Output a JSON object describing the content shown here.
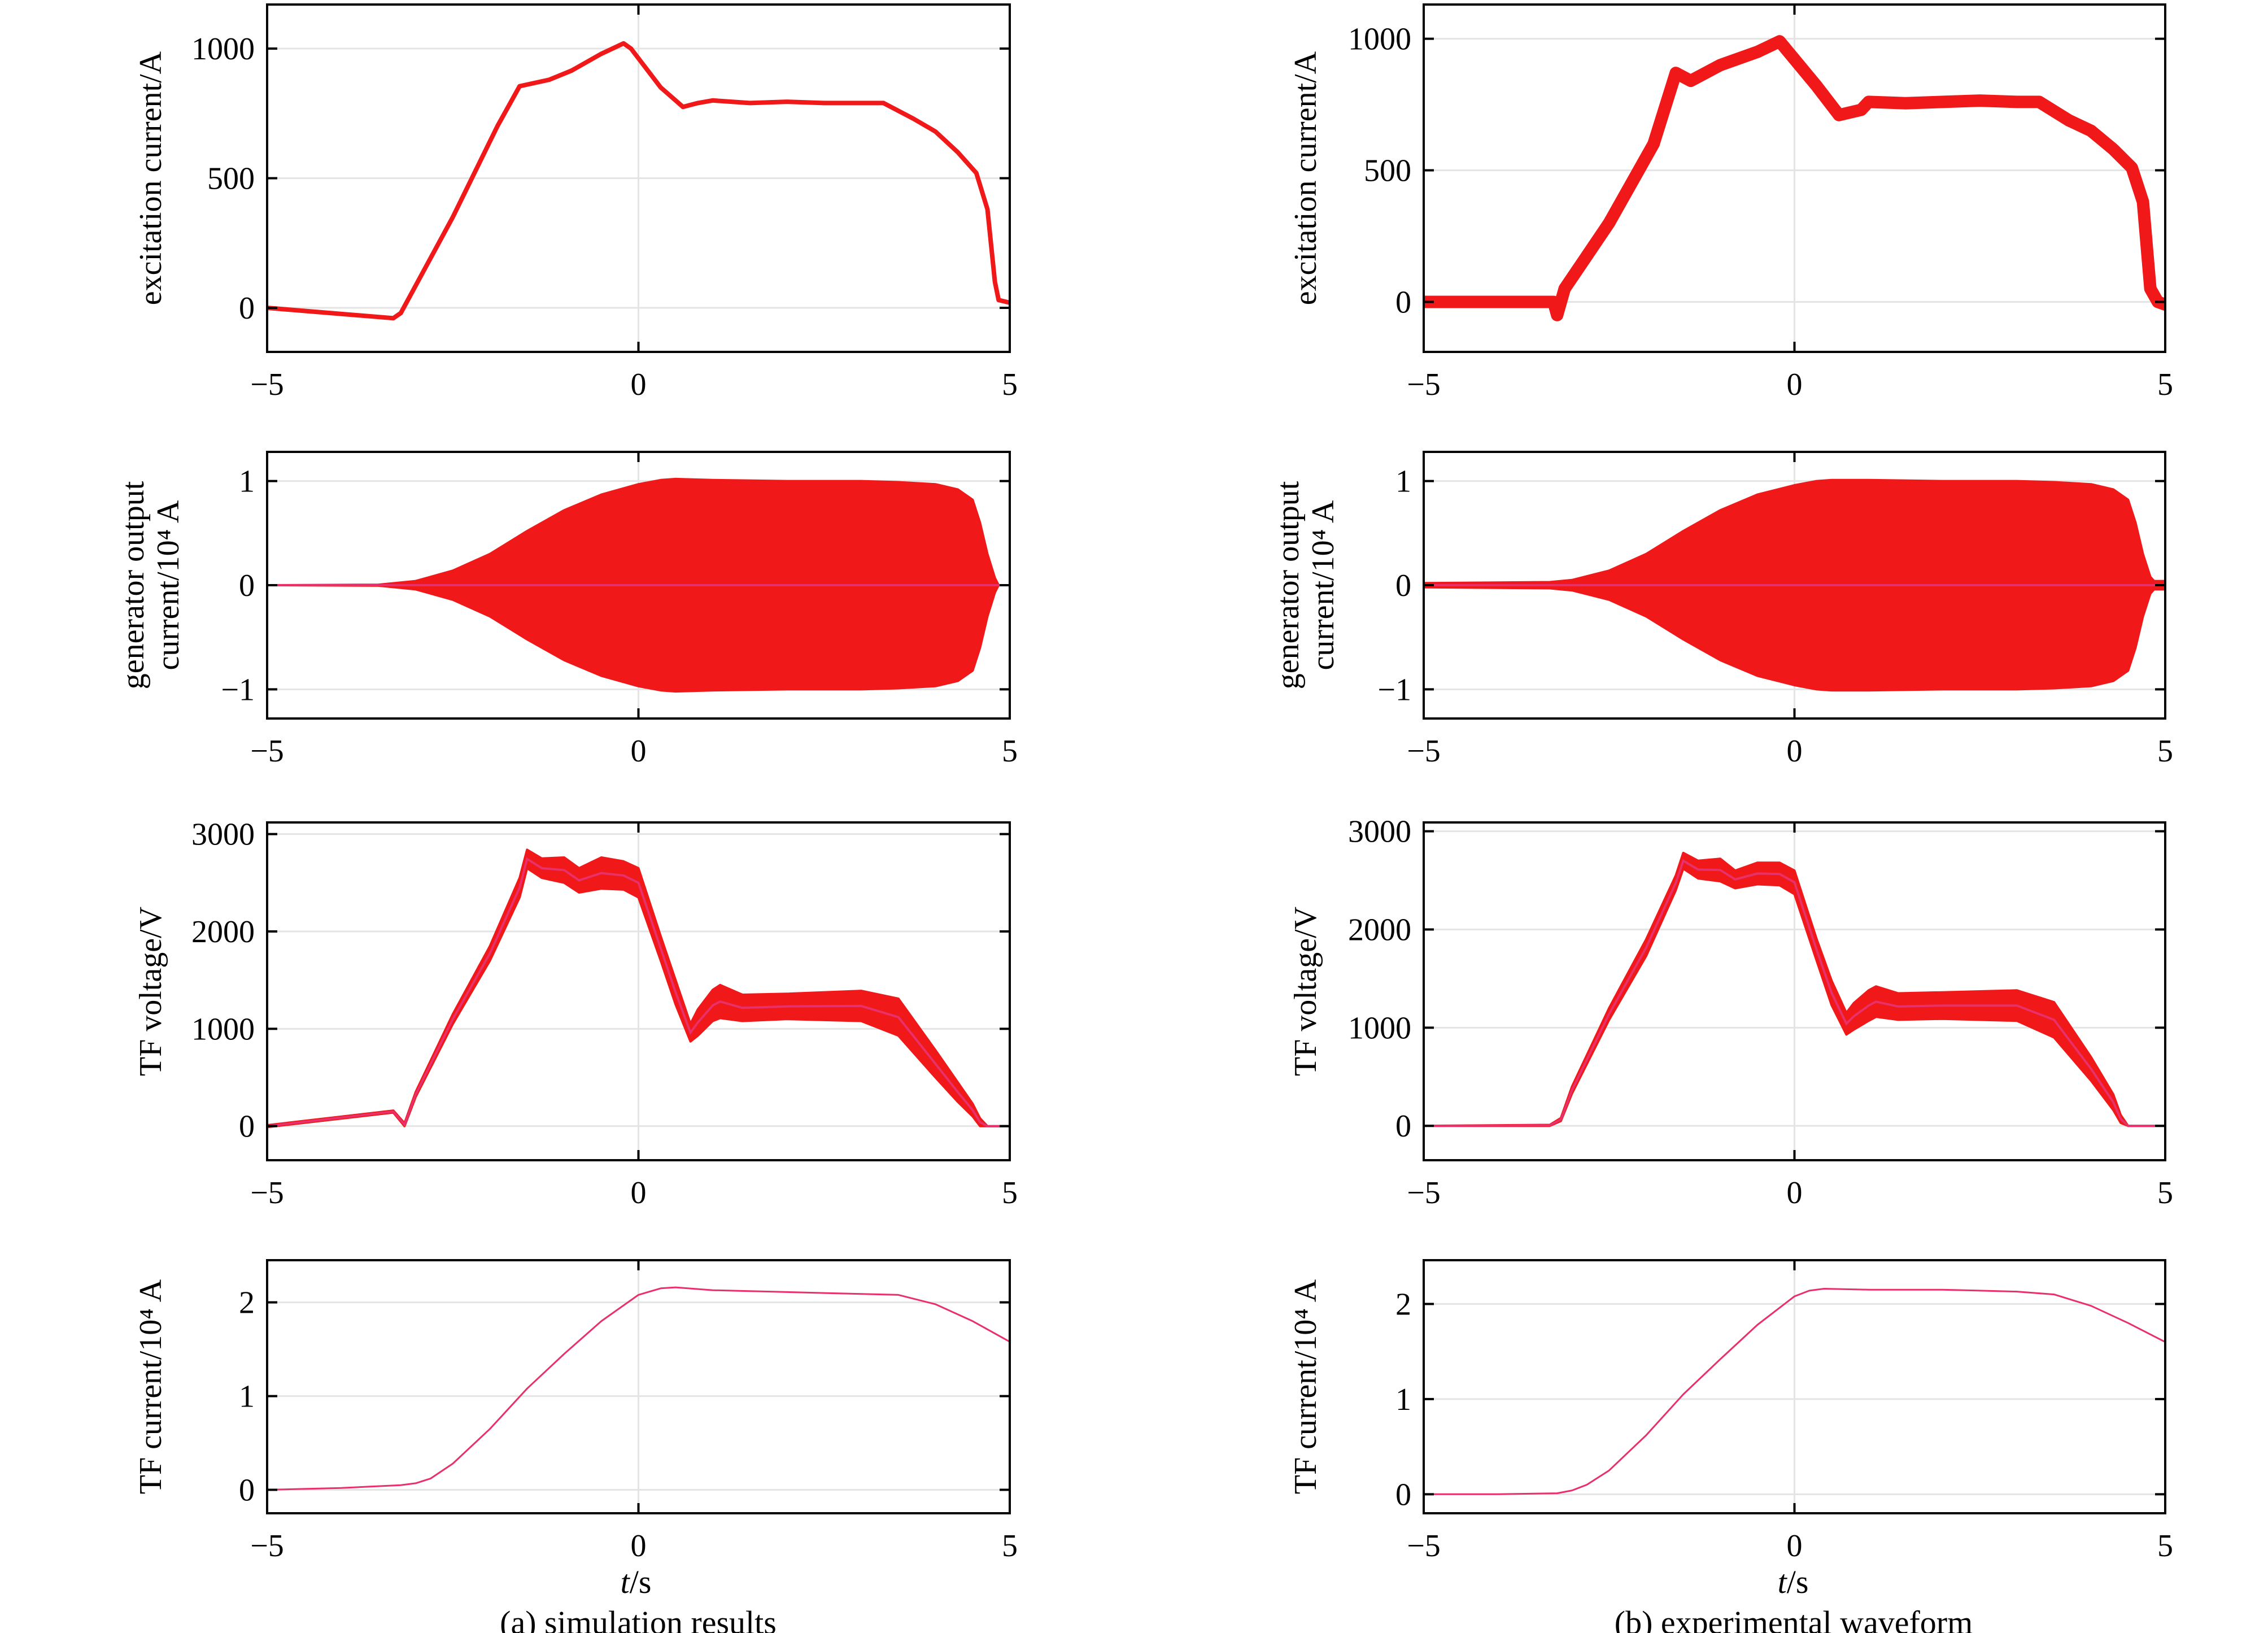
{
  "figure": {
    "columns": [
      {
        "key": "a",
        "caption": "(a) simulation results",
        "xlabel_italic": "t",
        "xlabel_rest": "/s"
      },
      {
        "key": "b",
        "caption": "(b) experimental waveform",
        "xlabel_italic": "t",
        "xlabel_rest": "/s"
      }
    ],
    "rows": [
      {
        "key": "excitation",
        "ylabel_lines": [
          "excitation current/A"
        ]
      },
      {
        "key": "gen_output",
        "ylabel_lines": [
          "generator output",
          "current/10⁴ A"
        ]
      },
      {
        "key": "tf_voltage",
        "ylabel_lines": [
          "TF voltage/V"
        ]
      },
      {
        "key": "tf_current",
        "ylabel_lines": [
          "TF current/10⁴ A"
        ]
      }
    ],
    "x_ticks": [
      "−5",
      "0",
      "5"
    ],
    "colors": {
      "trace": "#f01818",
      "thin_trace": "#e8306a",
      "grid": "#e4e4e4",
      "axis": "#000000"
    }
  },
  "chart_data": [
    {
      "id": "a-excitation",
      "type": "line",
      "column": "a",
      "title": "",
      "xlabel": "",
      "ylabel": "excitation current/A",
      "xlim": [
        -5,
        5
      ],
      "ylim": [
        -170,
        1170
      ],
      "x_ticks": [
        -5,
        0,
        5
      ],
      "y_ticks": [
        0,
        500,
        1000
      ],
      "y_tick_labels": [
        "0",
        "500",
        "1000"
      ],
      "grid": true,
      "band_width": 8,
      "x": [
        -5,
        -3.3,
        -3.2,
        -2.5,
        -1.9,
        -1.6,
        -1.2,
        -0.9,
        -0.5,
        -0.2,
        -0.1,
        0.3,
        0.6,
        0.8,
        1.0,
        1.5,
        2.0,
        2.5,
        3.0,
        3.3,
        3.7,
        4.0,
        4.3,
        4.55,
        4.7,
        4.8,
        4.85,
        5.0
      ],
      "values": [
        0,
        -40,
        -20,
        350,
        700,
        855,
        880,
        915,
        980,
        1020,
        1000,
        850,
        775,
        790,
        800,
        790,
        795,
        790,
        790,
        790,
        730,
        680,
        600,
        520,
        380,
        100,
        30,
        20
      ]
    },
    {
      "id": "b-excitation",
      "type": "line",
      "column": "b",
      "title": "",
      "xlabel": "",
      "ylabel": "excitation current/A",
      "xlim": [
        -5,
        5
      ],
      "ylim": [
        -190,
        1130
      ],
      "x_ticks": [
        -5,
        0,
        5
      ],
      "y_ticks": [
        0,
        500,
        1000
      ],
      "y_tick_labels": [
        "0",
        "500",
        "1000"
      ],
      "grid": true,
      "band_width": 22,
      "x": [
        -5,
        -3.25,
        -3.2,
        -3.1,
        -2.5,
        -1.9,
        -1.6,
        -1.4,
        -1.0,
        -0.5,
        -0.2,
        0.3,
        0.6,
        0.9,
        1.0,
        1.5,
        2.0,
        2.5,
        3.0,
        3.3,
        3.7,
        4.0,
        4.3,
        4.55,
        4.7,
        4.8,
        4.9,
        5.0
      ],
      "values": [
        0,
        0,
        -50,
        50,
        300,
        600,
        870,
        840,
        900,
        950,
        990,
        820,
        710,
        730,
        760,
        755,
        760,
        765,
        760,
        760,
        690,
        650,
        580,
        510,
        380,
        50,
        0,
        -10
      ]
    },
    {
      "id": "a-gen_output",
      "type": "area",
      "column": "a",
      "title": "",
      "xlabel": "",
      "ylabel": "generator output current/10⁴ A",
      "xlim": [
        -5,
        5
      ],
      "ylim": [
        -1.28,
        1.28
      ],
      "x_ticks": [
        -5,
        0,
        5
      ],
      "y_ticks": [
        -1,
        0,
        1
      ],
      "y_tick_labels": [
        "−1",
        "0",
        "1"
      ],
      "grid": true,
      "x": [
        -5,
        -3.5,
        -3.0,
        -2.5,
        -2.0,
        -1.5,
        -1.0,
        -0.5,
        0.0,
        0.3,
        0.5,
        1.0,
        2.0,
        3.0,
        3.5,
        4.0,
        4.3,
        4.5,
        4.6,
        4.7,
        4.8,
        4.85,
        5.0
      ],
      "upper": [
        0.0,
        0.005,
        0.04,
        0.14,
        0.3,
        0.52,
        0.72,
        0.87,
        0.97,
        1.01,
        1.02,
        1.01,
        1.0,
        1.0,
        0.99,
        0.97,
        0.92,
        0.82,
        0.6,
        0.3,
        0.07,
        0.0,
        0.0
      ],
      "lower": [
        0.0,
        -0.005,
        -0.04,
        -0.14,
        -0.3,
        -0.52,
        -0.72,
        -0.87,
        -0.97,
        -1.01,
        -1.02,
        -1.01,
        -1.0,
        -1.0,
        -0.99,
        -0.97,
        -0.92,
        -0.82,
        -0.6,
        -0.3,
        -0.07,
        0.0,
        0.0
      ]
    },
    {
      "id": "b-gen_output",
      "type": "area",
      "column": "b",
      "title": "",
      "xlabel": "",
      "ylabel": "generator output current/10⁴ A",
      "xlim": [
        -5,
        5
      ],
      "ylim": [
        -1.28,
        1.28
      ],
      "x_ticks": [
        -5,
        0,
        5
      ],
      "y_ticks": [
        -1,
        0,
        1
      ],
      "y_tick_labels": [
        "−1",
        "0",
        "1"
      ],
      "grid": true,
      "x": [
        -5,
        -3.3,
        -3.0,
        -2.5,
        -2.0,
        -1.5,
        -1.0,
        -0.5,
        0.0,
        0.3,
        0.5,
        1.0,
        2.0,
        3.0,
        3.5,
        4.0,
        4.3,
        4.5,
        4.6,
        4.7,
        4.8,
        4.85,
        5.0
      ],
      "upper": [
        0.02,
        0.03,
        0.05,
        0.14,
        0.3,
        0.52,
        0.72,
        0.87,
        0.96,
        1.0,
        1.01,
        1.01,
        1.0,
        1.0,
        0.99,
        0.97,
        0.92,
        0.82,
        0.6,
        0.3,
        0.08,
        0.04,
        0.04
      ],
      "lower": [
        -0.02,
        -0.03,
        -0.05,
        -0.14,
        -0.3,
        -0.52,
        -0.72,
        -0.87,
        -0.96,
        -1.0,
        -1.01,
        -1.01,
        -1.0,
        -1.0,
        -0.99,
        -0.97,
        -0.92,
        -0.82,
        -0.6,
        -0.3,
        -0.08,
        -0.04,
        -0.04
      ]
    },
    {
      "id": "a-tf_voltage",
      "type": "area",
      "column": "a",
      "title": "",
      "xlabel": "",
      "ylabel": "TF voltage/V",
      "xlim": [
        -5,
        5
      ],
      "ylim": [
        -350,
        3120
      ],
      "x_ticks": [
        -5,
        0,
        5
      ],
      "y_ticks": [
        0,
        1000,
        2000,
        3000
      ],
      "y_tick_labels": [
        "0",
        "1000",
        "2000",
        "3000"
      ],
      "grid": true,
      "x": [
        -5,
        -3.3,
        -3.15,
        -3.0,
        -2.5,
        -2.0,
        -1.6,
        -1.5,
        -1.3,
        -1.0,
        -0.8,
        -0.5,
        -0.2,
        0.0,
        0.3,
        0.5,
        0.7,
        0.8,
        1.0,
        1.1,
        1.4,
        2.0,
        3.0,
        3.5,
        4.0,
        4.3,
        4.5,
        4.6,
        4.7,
        5.0
      ],
      "upper": [
        10,
        160,
        30,
        350,
        1150,
        1850,
        2550,
        2840,
        2750,
        2760,
        2650,
        2760,
        2720,
        2650,
        1950,
        1500,
        1050,
        1200,
        1400,
        1450,
        1350,
        1360,
        1390,
        1310,
        780,
        450,
        230,
        80,
        0,
        0
      ],
      "lower": [
        -10,
        140,
        0,
        300,
        1050,
        1700,
        2350,
        2650,
        2550,
        2500,
        2400,
        2440,
        2430,
        2350,
        1700,
        1250,
        870,
        930,
        1080,
        1110,
        1080,
        1100,
        1080,
        930,
        500,
        250,
        100,
        0,
        0,
        0
      ]
    },
    {
      "id": "b-tf_voltage",
      "type": "area",
      "column": "b",
      "title": "",
      "xlabel": "",
      "ylabel": "TF voltage/V",
      "xlim": [
        -5,
        5
      ],
      "ylim": [
        -350,
        3090
      ],
      "x_ticks": [
        -5,
        0,
        5
      ],
      "y_ticks": [
        0,
        1000,
        2000,
        3000
      ],
      "y_tick_labels": [
        "0",
        "1000",
        "2000",
        "3000"
      ],
      "grid": true,
      "x": [
        -5,
        -3.3,
        -3.15,
        -3.0,
        -2.5,
        -2.0,
        -1.6,
        -1.5,
        -1.3,
        -1.0,
        -0.8,
        -0.5,
        -0.2,
        0.0,
        0.3,
        0.5,
        0.7,
        0.8,
        1.0,
        1.1,
        1.4,
        2.0,
        3.0,
        3.5,
        4.0,
        4.3,
        4.4,
        4.5,
        5.0
      ],
      "upper": [
        0,
        10,
        80,
        400,
        1200,
        1900,
        2550,
        2780,
        2700,
        2720,
        2600,
        2680,
        2680,
        2600,
        1900,
        1480,
        1150,
        1250,
        1380,
        1420,
        1350,
        1360,
        1380,
        1260,
        700,
        320,
        110,
        0,
        0
      ],
      "lower": [
        0,
        0,
        50,
        330,
        1080,
        1730,
        2400,
        2620,
        2520,
        2490,
        2420,
        2460,
        2450,
        2360,
        1680,
        1230,
        930,
        980,
        1070,
        1110,
        1080,
        1090,
        1070,
        900,
        460,
        160,
        30,
        0,
        0
      ]
    },
    {
      "id": "a-tf_current",
      "type": "line",
      "column": "a",
      "title": "",
      "xlabel": "t/s",
      "ylabel": "TF current/10⁴ A",
      "xlim": [
        -5,
        5
      ],
      "ylim": [
        -0.25,
        2.45
      ],
      "x_ticks": [
        -5,
        0,
        5
      ],
      "y_ticks": [
        0,
        1,
        2
      ],
      "y_tick_labels": [
        "0",
        "1",
        "2"
      ],
      "grid": true,
      "band_width": 3,
      "x": [
        -5,
        -4.0,
        -3.2,
        -3.0,
        -2.8,
        -2.5,
        -2.0,
        -1.5,
        -1.0,
        -0.5,
        0.0,
        0.3,
        0.5,
        1.0,
        1.5,
        2.0,
        2.5,
        3.0,
        3.5,
        4.0,
        4.5,
        5.0
      ],
      "values": [
        0.0,
        0.02,
        0.05,
        0.07,
        0.12,
        0.28,
        0.65,
        1.08,
        1.45,
        1.8,
        2.08,
        2.15,
        2.16,
        2.13,
        2.12,
        2.11,
        2.1,
        2.09,
        2.08,
        1.98,
        1.8,
        1.58
      ]
    },
    {
      "id": "b-tf_current",
      "type": "line",
      "column": "b",
      "title": "",
      "xlabel": "t/s",
      "ylabel": "TF current/10⁴ A",
      "xlim": [
        -5,
        5
      ],
      "ylim": [
        -0.2,
        2.46
      ],
      "x_ticks": [
        -5,
        0,
        5
      ],
      "y_ticks": [
        0,
        1,
        2
      ],
      "y_tick_labels": [
        "0",
        "1",
        "2"
      ],
      "grid": true,
      "band_width": 3,
      "x": [
        -5,
        -4.0,
        -3.2,
        -3.0,
        -2.8,
        -2.5,
        -2.0,
        -1.5,
        -1.0,
        -0.5,
        0.0,
        0.2,
        0.4,
        1.0,
        1.5,
        2.0,
        2.5,
        3.0,
        3.5,
        4.0,
        4.5,
        5.0
      ],
      "values": [
        0.0,
        0.0,
        0.01,
        0.04,
        0.1,
        0.25,
        0.62,
        1.05,
        1.42,
        1.78,
        2.08,
        2.14,
        2.16,
        2.15,
        2.15,
        2.15,
        2.14,
        2.13,
        2.1,
        1.98,
        1.8,
        1.6
      ]
    }
  ]
}
